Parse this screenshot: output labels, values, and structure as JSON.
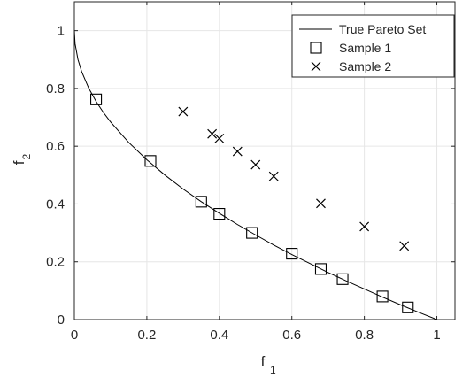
{
  "chart_data": {
    "type": "scatter",
    "title": "",
    "xlabel": {
      "base": "f",
      "sub": "1"
    },
    "ylabel": {
      "base": "f",
      "sub": "2"
    },
    "xlim": [
      0,
      1.05
    ],
    "ylim": [
      0,
      1.1
    ],
    "xticks": [
      0,
      0.2,
      0.4,
      0.6,
      0.8,
      1
    ],
    "xtick_labels": [
      "0",
      "0.2",
      "0.4",
      "0.6",
      "0.8",
      "1"
    ],
    "yticks": [
      0,
      0.2,
      0.4,
      0.6,
      0.8,
      1
    ],
    "ytick_labels": [
      "0",
      "0.2",
      "0.4",
      "0.6",
      "0.8",
      "1"
    ],
    "grid": true,
    "legend_position": "top-right",
    "series": [
      {
        "name": "True Pareto Set",
        "style": "line",
        "color": "#000000",
        "formula": "f2 = 1 - sqrt(f1)",
        "x": [
          0,
          0.002,
          0.01,
          0.02,
          0.04,
          0.06,
          0.08,
          0.1,
          0.15,
          0.2,
          0.25,
          0.3,
          0.35,
          0.4,
          0.45,
          0.5,
          0.55,
          0.6,
          0.65,
          0.7,
          0.75,
          0.8,
          0.85,
          0.9,
          0.95,
          1.0
        ],
        "y": [
          1.0,
          0.955,
          0.9,
          0.859,
          0.8,
          0.755,
          0.717,
          0.684,
          0.613,
          0.553,
          0.5,
          0.452,
          0.408,
          0.368,
          0.329,
          0.293,
          0.258,
          0.225,
          0.194,
          0.163,
          0.134,
          0.106,
          0.078,
          0.051,
          0.025,
          0.0
        ]
      },
      {
        "name": "Sample 1",
        "style": "square",
        "color": "#000000",
        "x": [
          0.06,
          0.21,
          0.35,
          0.4,
          0.49,
          0.6,
          0.68,
          0.74,
          0.85,
          0.92
        ],
        "y": [
          0.762,
          0.549,
          0.408,
          0.366,
          0.3,
          0.228,
          0.175,
          0.14,
          0.08,
          0.042
        ]
      },
      {
        "name": "Sample 2",
        "style": "x",
        "color": "#000000",
        "x": [
          0.3,
          0.38,
          0.4,
          0.45,
          0.5,
          0.55,
          0.68,
          0.8,
          0.91
        ],
        "y": [
          0.72,
          0.643,
          0.627,
          0.582,
          0.536,
          0.496,
          0.402,
          0.322,
          0.255
        ]
      }
    ]
  }
}
